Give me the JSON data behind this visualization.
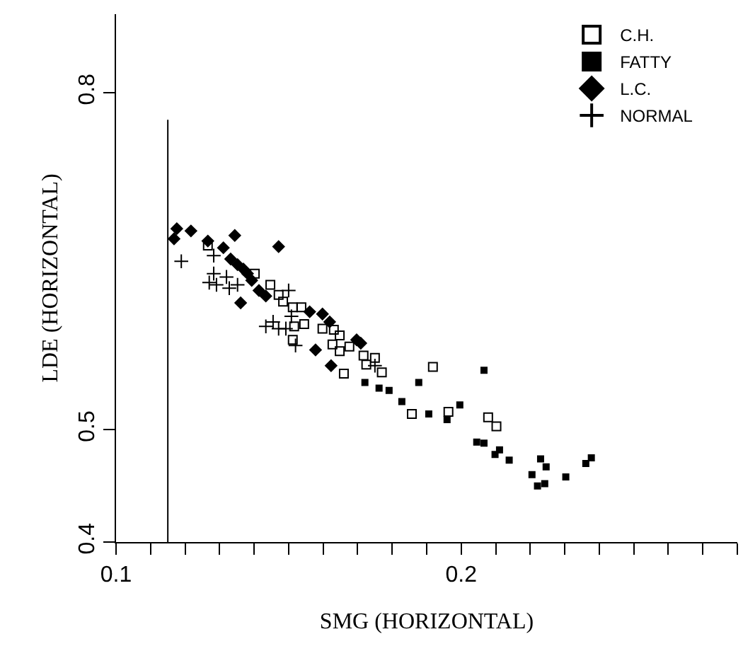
{
  "chart_data": {
    "type": "scatter",
    "xlabel": "SMG (HORIZONTAL)",
    "ylabel": "LDE (HORIZONTAL)",
    "xlim": [
      0.1,
      0.28
    ],
    "ylim": [
      0.4,
      0.87
    ],
    "xticks": [
      0.1,
      {
        "value": 0.11,
        "label": null
      },
      {
        "value": 0.12,
        "label": null
      },
      {
        "value": 0.13,
        "label": null
      },
      {
        "value": 0.14,
        "label": null
      },
      {
        "value": 0.15,
        "label": null
      },
      {
        "value": 0.16,
        "label": null
      },
      {
        "value": 0.17,
        "label": null
      },
      {
        "value": 0.18,
        "label": null
      },
      {
        "value": 0.19,
        "label": null
      },
      0.2,
      {
        "value": 0.21,
        "label": null
      },
      {
        "value": 0.22,
        "label": null
      },
      {
        "value": 0.23,
        "label": null
      },
      {
        "value": 0.24,
        "label": null
      },
      {
        "value": 0.25,
        "label": null
      },
      {
        "value": 0.26,
        "label": null
      },
      {
        "value": 0.27,
        "label": null
      },
      {
        "value": 0.28,
        "label": null
      }
    ],
    "yticks": [
      0.4,
      0.5,
      0.8
    ],
    "legend": "top right",
    "ref_lines": [
      {
        "axis": "x",
        "value": 0.115,
        "color": "#000000",
        "line_style": "solid"
      }
    ],
    "series": [
      {
        "name": "C.H.",
        "color": "#000000",
        "marker": "square-open",
        "x": [
          0.1266,
          0.1402,
          0.1447,
          0.1471,
          0.1484,
          0.1512,
          0.1537,
          0.1516,
          0.1545,
          0.1512,
          0.1598,
          0.1631,
          0.1648,
          0.1627,
          0.1648,
          0.1676,
          0.1717,
          0.175,
          0.1725,
          0.177,
          0.166,
          0.1857,
          0.1918,
          0.1963,
          0.2078,
          0.2102
        ],
        "values": [
          0.664,
          0.639,
          0.629,
          0.62,
          0.614,
          0.609,
          0.609,
          0.592,
          0.594,
          0.58,
          0.59,
          0.589,
          0.584,
          0.576,
          0.57,
          0.574,
          0.566,
          0.564,
          0.558,
          0.551,
          0.55,
          0.514,
          0.556,
          0.516,
          0.511,
          0.503
        ]
      },
      {
        "name": "FATTY",
        "color": "#000000",
        "marker": "square",
        "x": [
          0.1721,
          0.1762,
          0.1791,
          0.1877,
          0.1828,
          0.1906,
          0.1959,
          0.1996,
          0.2045,
          0.2066,
          0.2111,
          0.2098,
          0.2139,
          0.223,
          0.2246,
          0.2205,
          0.2221,
          0.2242,
          0.2303,
          0.2361,
          0.2377,
          0.2066
        ],
        "values": [
          0.542,
          0.537,
          0.535,
          0.542,
          0.525,
          0.514,
          0.509,
          0.522,
          0.489,
          0.488,
          0.482,
          0.478,
          0.473,
          0.474,
          0.467,
          0.46,
          0.45,
          0.452,
          0.458,
          0.47,
          0.475,
          0.553
        ]
      },
      {
        "name": "L.C.",
        "color": "#000000",
        "marker": "diamond",
        "x": [
          0.1176,
          0.1168,
          0.1217,
          0.1266,
          0.1311,
          0.1344,
          0.1471,
          0.1332,
          0.1352,
          0.1369,
          0.1381,
          0.1393,
          0.1361,
          0.1414,
          0.1434,
          0.1561,
          0.1598,
          0.1619,
          0.1697,
          0.1709,
          0.1578,
          0.1623
        ],
        "values": [
          0.679,
          0.67,
          0.677,
          0.668,
          0.662,
          0.673,
          0.663,
          0.652,
          0.647,
          0.643,
          0.639,
          0.633,
          0.613,
          0.624,
          0.619,
          0.605,
          0.603,
          0.596,
          0.58,
          0.577,
          0.571,
          0.557
        ]
      },
      {
        "name": "NORMAL",
        "color": "#000000",
        "marker": "cross",
        "x": [
          0.1189,
          0.1283,
          0.1283,
          0.132,
          0.127,
          0.1291,
          0.1328,
          0.1352,
          0.15,
          0.1508,
          0.1434,
          0.1455,
          0.1471,
          0.1492,
          0.152,
          0.175
        ],
        "values": [
          0.65,
          0.655,
          0.639,
          0.636,
          0.631,
          0.629,
          0.626,
          0.629,
          0.624,
          0.601,
          0.592,
          0.596,
          0.59,
          0.59,
          0.575,
          0.557
        ]
      }
    ]
  }
}
